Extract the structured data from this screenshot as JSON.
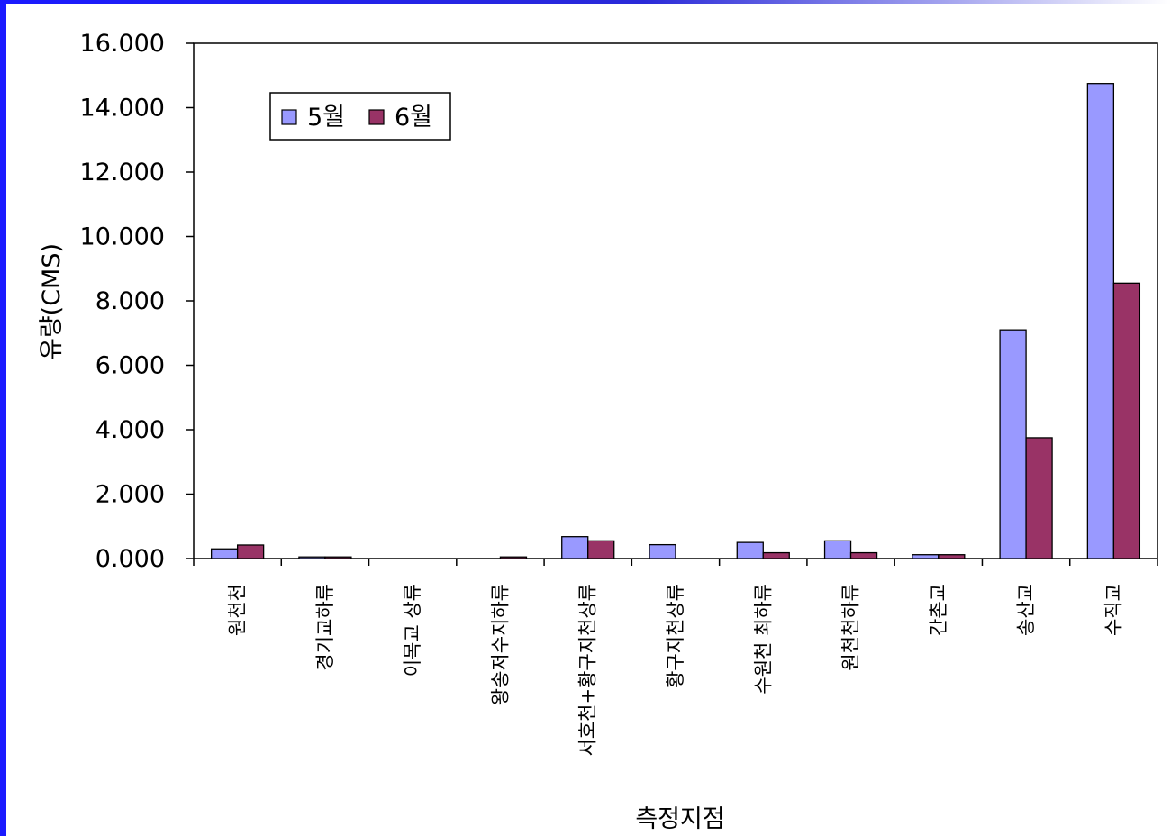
{
  "colors": {
    "frame": "#1a1aff",
    "series_may": "#9999ff",
    "series_june": "#993366",
    "axis": "#000000"
  },
  "chart_data": {
    "type": "bar",
    "title": "",
    "xlabel": "측정지점",
    "ylabel": "유량(CMS)",
    "ylim": [
      0,
      16
    ],
    "yticks": [
      "0.000",
      "2.000",
      "4.000",
      "6.000",
      "8.000",
      "10.000",
      "12.000",
      "14.000",
      "16.000"
    ],
    "categories": [
      "원천천",
      "경기교하류",
      "이목교 상류",
      "왕송저수지하류",
      "서호천+황구지천상류",
      "황구지천상류",
      "수원천 최하류",
      "원천천하류",
      "간촌교",
      "송산교",
      "수직교"
    ],
    "series": [
      {
        "name": "5월",
        "values": [
          0.3,
          0.05,
          0.0,
          0.0,
          0.68,
          0.43,
          0.5,
          0.55,
          0.12,
          7.1,
          14.75
        ]
      },
      {
        "name": "6월",
        "values": [
          0.42,
          0.05,
          0.0,
          0.05,
          0.55,
          0.0,
          0.18,
          0.18,
          0.12,
          3.75,
          8.55
        ]
      }
    ],
    "grid": false,
    "legend": "top-left"
  }
}
